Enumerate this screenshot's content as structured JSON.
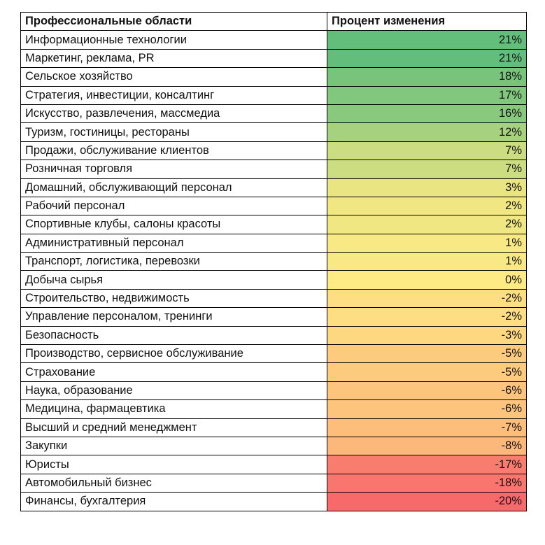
{
  "chart_data": {
    "type": "table",
    "columns": [
      "Профессиональные области",
      "Процент изменения"
    ],
    "color_scale": {
      "min_color": "#F8696B",
      "mid_color": "#FFEB84",
      "max_color": "#63BE7B",
      "mid_value": 0
    },
    "rows": [
      {
        "label": "Информационные технологии",
        "value": 21,
        "text": "21%"
      },
      {
        "label": "Маркетинг, реклама, PR",
        "value": 21,
        "text": "21%"
      },
      {
        "label": "Сельское хозяйство",
        "value": 18,
        "text": "18%"
      },
      {
        "label": "Стратегия, инвестиции, консалтинг",
        "value": 17,
        "text": "17%"
      },
      {
        "label": "Искусство, развлечения, массмедиа",
        "value": 16,
        "text": "16%"
      },
      {
        "label": "Туризм, гостиницы, рестораны",
        "value": 12,
        "text": "12%"
      },
      {
        "label": "Продажи, обслуживание клиентов",
        "value": 7,
        "text": "7%"
      },
      {
        "label": "Розничная торговля",
        "value": 7,
        "text": "7%"
      },
      {
        "label": "Домашний, обслуживающий персонал",
        "value": 3,
        "text": "3%"
      },
      {
        "label": "Рабочий персонал",
        "value": 2,
        "text": "2%"
      },
      {
        "label": "Спортивные клубы, салоны красоты",
        "value": 2,
        "text": "2%"
      },
      {
        "label": "Административный персонал",
        "value": 1,
        "text": "1%"
      },
      {
        "label": "Транспорт, логистика, перевозки",
        "value": 1,
        "text": "1%"
      },
      {
        "label": "Добыча сырья",
        "value": 0,
        "text": "0%"
      },
      {
        "label": "Строительство, недвижимость",
        "value": -2,
        "text": "-2%"
      },
      {
        "label": "Управление персоналом, тренинги",
        "value": -2,
        "text": "-2%"
      },
      {
        "label": "Безопасность",
        "value": -3,
        "text": "-3%"
      },
      {
        "label": "Производство, сервисное обслуживание",
        "value": -5,
        "text": "-5%"
      },
      {
        "label": "Страхование",
        "value": -5,
        "text": "-5%"
      },
      {
        "label": "Наука, образование",
        "value": -6,
        "text": "-6%"
      },
      {
        "label": "Медицина, фармацевтика",
        "value": -6,
        "text": "-6%"
      },
      {
        "label": "Высший и средний менеджмент",
        "value": -7,
        "text": "-7%"
      },
      {
        "label": "Закупки",
        "value": -8,
        "text": "-8%"
      },
      {
        "label": "Юристы",
        "value": -17,
        "text": "-17%"
      },
      {
        "label": "Автомобильный бизнес",
        "value": -18,
        "text": "-18%"
      },
      {
        "label": "Финансы, бухгалтерия",
        "value": -20,
        "text": "-20%"
      }
    ]
  }
}
